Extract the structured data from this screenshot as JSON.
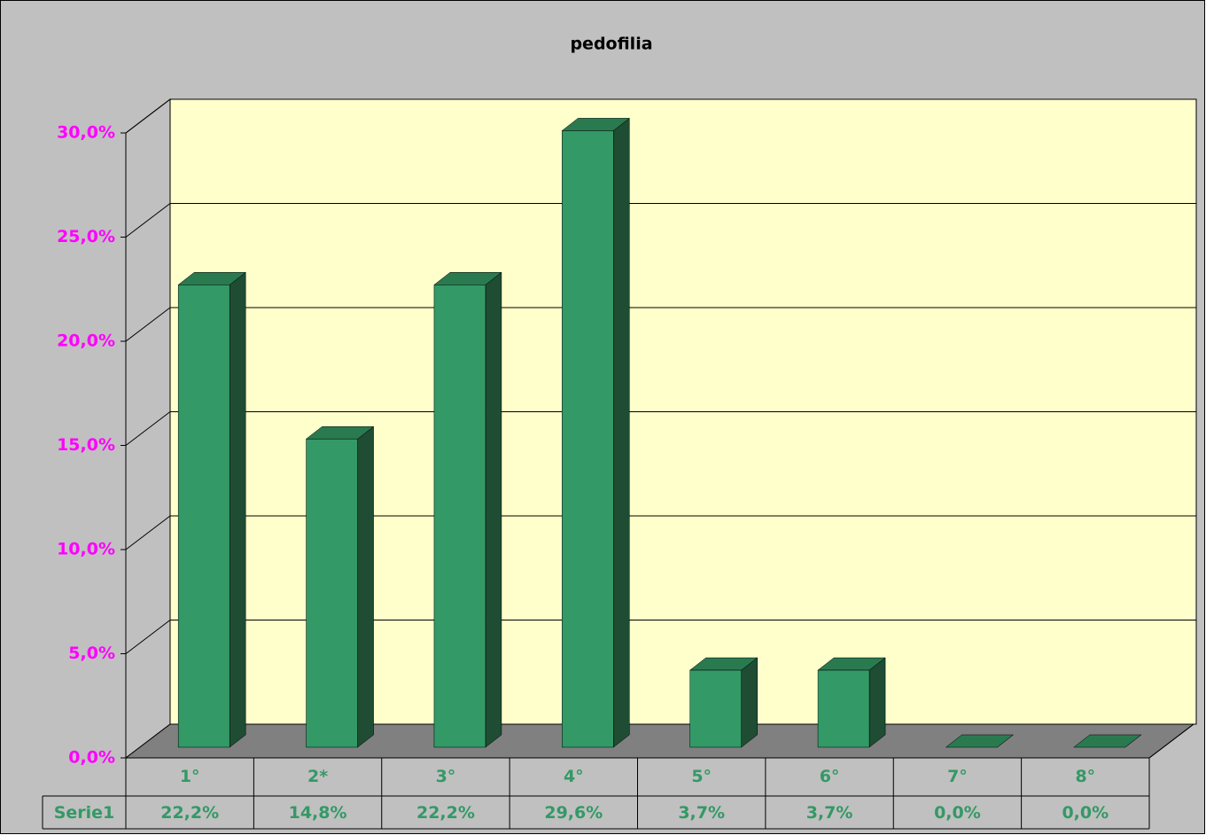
{
  "chart_data": {
    "type": "bar3d",
    "title": "pedofilia",
    "categories": [
      "1°",
      "2*",
      "3°",
      "4°",
      "5°",
      "6°",
      "7°",
      "8°"
    ],
    "series": [
      {
        "name": "Serie1",
        "color": "#339966",
        "values": [
          22.2,
          14.8,
          22.2,
          29.6,
          3.7,
          3.7,
          0,
          0
        ],
        "value_labels": [
          "22,2%",
          "14,8%",
          "22,2%",
          "29,6%",
          "3,7%",
          "3,7%",
          "0,0%",
          "0,0%"
        ]
      }
    ],
    "ylim": [
      0,
      30
    ],
    "yticks": [
      {
        "value": 0,
        "label": "0,0%"
      },
      {
        "value": 5,
        "label": "5,0%"
      },
      {
        "value": 10,
        "label": "10,0%"
      },
      {
        "value": 15,
        "label": "15,0%"
      },
      {
        "value": 20,
        "label": "20,0%"
      },
      {
        "value": 25,
        "label": "25,0%"
      },
      {
        "value": 30,
        "label": "30,0%"
      }
    ],
    "grid": true,
    "data_table": true
  }
}
